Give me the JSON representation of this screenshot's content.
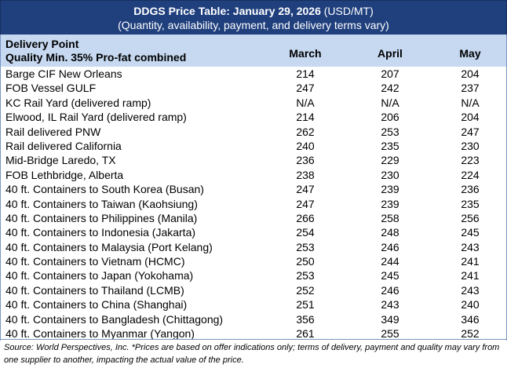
{
  "title": {
    "bold": "DDGS Price Table: January 29, 2026",
    "unit": " (USD/MT)",
    "subtitle": "(Quantity, availability, payment, and delivery terms vary)"
  },
  "header": {
    "line1": "Delivery Point",
    "line2": "Quality Min. 35% Pro-fat combined",
    "columns": [
      "March",
      "April",
      "May"
    ]
  },
  "rows": [
    {
      "name": "Barge CIF New Orleans",
      "values": [
        "214",
        "207",
        "204"
      ]
    },
    {
      "name": "FOB Vessel GULF",
      "values": [
        "247",
        "242",
        "237"
      ]
    },
    {
      "name": "KC Rail Yard (delivered ramp)",
      "values": [
        "N/A",
        "N/A",
        "N/A"
      ]
    },
    {
      "name": "Elwood, IL Rail Yard (delivered ramp)",
      "values": [
        "214",
        "206",
        "204"
      ]
    },
    {
      "name": "Rail delivered PNW",
      "values": [
        "262",
        "253",
        "247"
      ]
    },
    {
      "name": "Rail delivered California",
      "values": [
        "240",
        "235",
        "230"
      ]
    },
    {
      "name": "Mid-Bridge Laredo, TX",
      "values": [
        "236",
        "229",
        "223"
      ]
    },
    {
      "name": "FOB Lethbridge, Alberta",
      "values": [
        "238",
        "230",
        "224"
      ]
    },
    {
      "name": "40 ft. Containers to South Korea (Busan)",
      "values": [
        "247",
        "239",
        "236"
      ]
    },
    {
      "name": "40 ft. Containers to Taiwan (Kaohsiung)",
      "values": [
        "247",
        "239",
        "235"
      ]
    },
    {
      "name": "40 ft. Containers to Philippines (Manila)",
      "values": [
        "266",
        "258",
        "256"
      ]
    },
    {
      "name": "40 ft. Containers to Indonesia (Jakarta)",
      "values": [
        "254",
        "248",
        "245"
      ]
    },
    {
      "name": "40 ft. Containers to Malaysia (Port Kelang)",
      "values": [
        "253",
        "246",
        "243"
      ]
    },
    {
      "name": "40 ft. Containers to Vietnam (HCMC)",
      "values": [
        "250",
        "244",
        "241"
      ]
    },
    {
      "name": "40 ft. Containers to Japan (Yokohama)",
      "values": [
        "253",
        "245",
        "241"
      ]
    },
    {
      "name": "40 ft. Containers to Thailand (LCMB)",
      "values": [
        "252",
        "246",
        "243"
      ]
    },
    {
      "name": "40 ft. Containers to China (Shanghai)",
      "values": [
        "251",
        "243",
        "240"
      ]
    },
    {
      "name": "40 ft. Containers to Bangladesh (Chittagong)",
      "values": [
        "356",
        "349",
        "346"
      ]
    },
    {
      "name": "40 ft. Containers to Myanmar (Yangon)",
      "values": [
        "261",
        "255",
        "252"
      ]
    }
  ],
  "source": "Source: World Perspectives, Inc. *Prices are based on offer indications only; terms of delivery, payment and quality may vary from one supplier to another, impacting the actual value of the price.",
  "colors": {
    "title_bg": "#1f3f7d",
    "header_bg": "#c6d9f1"
  }
}
